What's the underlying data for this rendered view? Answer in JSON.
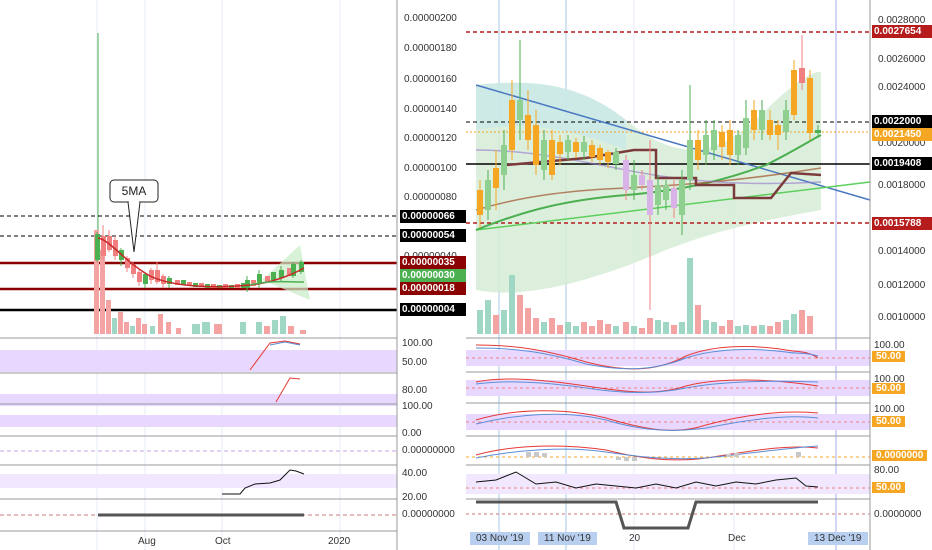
{
  "colors": {
    "up": "#4caf50",
    "down": "#f08080",
    "ma_red": "#c62828",
    "dark_red_line": "#8b0000",
    "black_line": "#000000",
    "blue_trend": "#4a78c2",
    "green_trend": "#5ccf5c",
    "orange_tag": "#f5a623",
    "rsi_band": "#e5d3ff"
  },
  "left_chart": {
    "price_axis": [
      "0.00000200",
      "0.00000180",
      "0.00000160",
      "0.00000140",
      "0.00000120",
      "0.00000100",
      "0.00000080",
      "0.00000060",
      "0.00000040"
    ],
    "level_tags": [
      {
        "label": "0.00000066",
        "style": "black"
      },
      {
        "label": "0.00000054",
        "style": "black"
      },
      {
        "label": "0.00000035",
        "style": "red"
      },
      {
        "label": "0.00000030",
        "style": "green"
      },
      {
        "label": "0.00000018",
        "style": "red"
      },
      {
        "label": "0.00000004",
        "style": "black"
      }
    ],
    "callout": "5MA",
    "sub_axes": [
      [
        "100.00",
        "50.00"
      ],
      [
        "80.00"
      ],
      [
        "100.00",
        "0.00"
      ],
      [
        "0.00000000"
      ],
      [
        "40.00",
        "20.00"
      ],
      [
        "0.00000000"
      ]
    ],
    "date_labels": [
      "Aug",
      "Oct",
      "2020"
    ]
  },
  "right_chart": {
    "price_axis": [
      "0.0028000",
      "0.0026000",
      "0.0024000",
      "0.0020000",
      "0.0018000",
      "0.0014000",
      "0.0012000",
      "0.0010000"
    ],
    "level_tags": [
      {
        "label": "0.0027654",
        "style": "darkred"
      },
      {
        "label": "0.0022000",
        "style": "black"
      },
      {
        "label": "0.0021450",
        "style": "orange"
      },
      {
        "label": "0.0019408",
        "style": "black"
      },
      {
        "label": "0.0015788",
        "style": "darkred"
      }
    ],
    "sub_axes": [
      [
        "100.00",
        "50.00"
      ],
      [
        "100.00",
        "50.00",
        "0.00"
      ],
      [
        "100.00",
        "50.00"
      ],
      [
        "0.0000000"
      ],
      [
        "80.00",
        "50.00",
        "20.00"
      ],
      [
        "0.0000000"
      ]
    ],
    "sub_tags": [
      "50.00",
      "50.00",
      "50.00",
      "0.0000000",
      "50.00"
    ],
    "date_labels": [
      "03 Nov '19",
      "11 Nov '19",
      "20",
      "Dec",
      "13 Dec '19"
    ]
  }
}
